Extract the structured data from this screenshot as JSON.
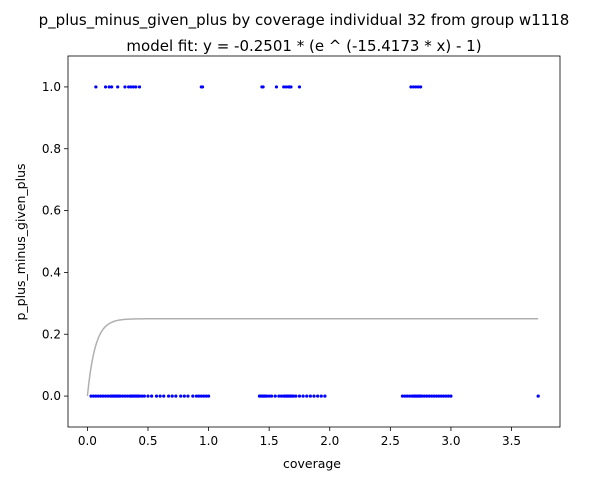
{
  "chart_data": {
    "type": "scatter",
    "title": "p_plus_minus_given_plus by coverage individual 32 from group w1118",
    "subtitle": "model fit: y = -0.2501 * (e ^ (-15.4173 * x) - 1)",
    "xlabel": "coverage",
    "ylabel": "p_plus_minus_given_plus",
    "xlim": [
      -0.16,
      3.9
    ],
    "ylim": [
      -0.1,
      1.1
    ],
    "xticks": [
      0.0,
      0.5,
      1.0,
      1.5,
      2.0,
      2.5,
      3.0,
      3.5
    ],
    "xtick_labels": [
      "0.0",
      "0.5",
      "1.0",
      "1.5",
      "2.0",
      "2.5",
      "3.0",
      "3.5"
    ],
    "yticks": [
      0.0,
      0.2,
      0.4,
      0.6,
      0.8,
      1.0
    ],
    "ytick_labels": [
      "0.0",
      "0.2",
      "0.4",
      "0.6",
      "0.8",
      "1.0"
    ],
    "grid": false,
    "point_color": "#0000ff",
    "fit_color": "#b0b0b0",
    "fit": {
      "a": -0.2501,
      "b": -15.4173,
      "x_range": [
        0.0,
        3.72
      ]
    },
    "points_y1": [
      0.07,
      0.15,
      0.18,
      0.2,
      0.25,
      0.31,
      0.34,
      0.36,
      0.38,
      0.4,
      0.43,
      0.94,
      0.95,
      1.44,
      1.45,
      1.56,
      1.62,
      1.64,
      1.66,
      1.67,
      1.68,
      1.75,
      2.67,
      2.69,
      2.71,
      2.73,
      2.75
    ],
    "points_y0": [
      0.03,
      0.05,
      0.07,
      0.09,
      0.11,
      0.13,
      0.15,
      0.17,
      0.19,
      0.2,
      0.21,
      0.22,
      0.23,
      0.24,
      0.25,
      0.26,
      0.27,
      0.29,
      0.31,
      0.33,
      0.35,
      0.36,
      0.37,
      0.38,
      0.39,
      0.4,
      0.41,
      0.42,
      0.43,
      0.45,
      0.47,
      0.5,
      0.53,
      0.57,
      0.6,
      0.63,
      0.67,
      0.7,
      0.73,
      0.77,
      0.8,
      0.83,
      0.87,
      0.9,
      0.92,
      0.94,
      0.96,
      0.98,
      1.0,
      1.42,
      1.43,
      1.44,
      1.45,
      1.46,
      1.47,
      1.48,
      1.5,
      1.52,
      1.55,
      1.58,
      1.6,
      1.62,
      1.63,
      1.64,
      1.65,
      1.66,
      1.67,
      1.68,
      1.69,
      1.7,
      1.72,
      1.75,
      1.78,
      1.81,
      1.84,
      1.87,
      1.9,
      1.93,
      1.96,
      2.6,
      2.62,
      2.64,
      2.66,
      2.68,
      2.69,
      2.7,
      2.71,
      2.72,
      2.73,
      2.74,
      2.75,
      2.76,
      2.78,
      2.8,
      2.82,
      2.84,
      2.86,
      2.88,
      2.9,
      2.92,
      2.94,
      2.96,
      2.98,
      3.0,
      3.72
    ]
  }
}
